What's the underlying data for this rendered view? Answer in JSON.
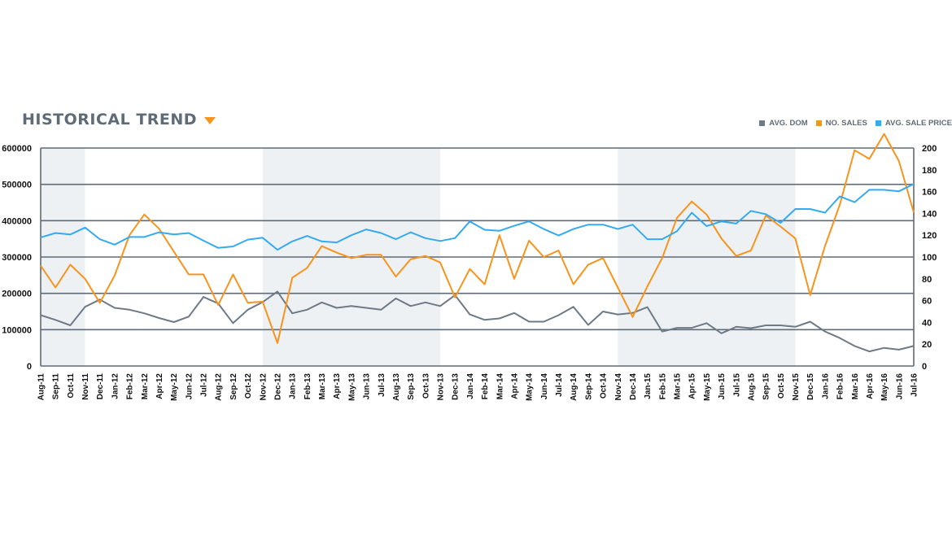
{
  "header": {
    "title": "HISTORICAL TREND"
  },
  "colors": {
    "dom": "#6e7a86",
    "sales": "#f7941d",
    "price": "#35aaf0",
    "band": "#eef1f4",
    "grid": "#5f6b76"
  },
  "legend": [
    {
      "label": "AVG. DOM",
      "color": "#6e7a86"
    },
    {
      "label": "NO. SALES",
      "color": "#f7941d"
    },
    {
      "label": "AVG. SALE PRICE",
      "color": "#35aaf0"
    }
  ],
  "chart_data": {
    "type": "line",
    "title": "HISTORICAL TREND",
    "x_labels": [
      "Aug-11",
      "Sep-11",
      "Oct-11",
      "Nov-11",
      "Dec-11",
      "Jan-12",
      "Feb-12",
      "Mar-12",
      "Apr-12",
      "May-12",
      "Jun-12",
      "Jul-12",
      "Aug-12",
      "Sep-12",
      "Oct-12",
      "Nov-12",
      "Dec-12",
      "Jan-13",
      "Feb-13",
      "Mar-13",
      "Apr-13",
      "May-13",
      "Jun-13",
      "Jul-13",
      "Aug-13",
      "Sep-13",
      "Oct-13",
      "Nov-13",
      "Dec-13",
      "Jan-14",
      "Feb-14",
      "Mar-14",
      "Apr-14",
      "May-14",
      "Jun-14",
      "Jul-14",
      "Aug-14",
      "Sep-14",
      "Oct-14",
      "Nov-14",
      "Dec-14",
      "Jan-15",
      "Feb-15",
      "Mar-15",
      "Apr-15",
      "May-15",
      "Jun-15",
      "Jul-15",
      "Aug-15",
      "Sep-15",
      "Oct-15",
      "Nov-15",
      "Dec-15",
      "Jan-16",
      "Feb-16",
      "Mar-16",
      "Apr-16",
      "May-16",
      "Jun-16",
      "Jul-16"
    ],
    "y_left": {
      "ticks": [
        "0",
        "100000",
        "200000",
        "300000",
        "400000",
        "500000",
        "600000"
      ],
      "range": [
        0,
        600000
      ]
    },
    "y_right": {
      "ticks": [
        "0",
        "20",
        "40",
        "60",
        "80",
        "100",
        "120",
        "140",
        "160",
        "180",
        "200"
      ],
      "range": [
        0,
        200
      ]
    },
    "shaded_bands": [
      [
        0,
        3
      ],
      [
        15,
        27
      ],
      [
        39,
        51
      ]
    ],
    "series": [
      {
        "name": "AVG. DOM",
        "axis": "left",
        "color": "#6e7a86",
        "values": [
          140000,
          127000,
          112000,
          163000,
          183000,
          160000,
          155000,
          145000,
          132000,
          121000,
          136000,
          190000,
          172000,
          118000,
          155000,
          176000,
          205000,
          145000,
          155000,
          175000,
          160000,
          165000,
          160000,
          155000,
          186000,
          165000,
          175000,
          165000,
          195000,
          142000,
          127000,
          131000,
          146000,
          122000,
          122000,
          140000,
          163000,
          113000,
          150000,
          142000,
          146000,
          162000,
          95000,
          105000,
          105000,
          118000,
          90000,
          108000,
          104000,
          112000,
          112000,
          108000,
          122000,
          95000,
          77000,
          55000,
          40000,
          50000,
          45000,
          55000
        ]
      },
      {
        "name": "NO. SALES",
        "axis": "right",
        "color": "#f7941d",
        "values": [
          92,
          72,
          93,
          80,
          58,
          83,
          120,
          139,
          126,
          105,
          84,
          84,
          56,
          84,
          58,
          59,
          21,
          81,
          90,
          110,
          104,
          99,
          102,
          102,
          82,
          98,
          101,
          95,
          63,
          89,
          75,
          120,
          80,
          115,
          100,
          106,
          75,
          93,
          99,
          72,
          45,
          73,
          99,
          136,
          151,
          139,
          117,
          101,
          106,
          138,
          128,
          117,
          65,
          110,
          148,
          198,
          190,
          213,
          188,
          141
        ]
      },
      {
        "name": "AVG. SALE PRICE",
        "axis": "left",
        "color": "#35aaf0",
        "values": [
          354000,
          366000,
          362000,
          381000,
          349000,
          334000,
          355000,
          355000,
          368000,
          362000,
          366000,
          345000,
          325000,
          329000,
          348000,
          353000,
          320000,
          343000,
          358000,
          343000,
          340000,
          360000,
          376000,
          366000,
          349000,
          368000,
          352000,
          344000,
          352000,
          398000,
          375000,
          372000,
          386000,
          398000,
          377000,
          359000,
          377000,
          389000,
          389000,
          377000,
          389000,
          349000,
          349000,
          371000,
          422000,
          385000,
          398000,
          392000,
          427000,
          418000,
          394000,
          432000,
          432000,
          422000,
          467000,
          451000,
          485000,
          485000,
          481000,
          501000
        ]
      }
    ]
  }
}
